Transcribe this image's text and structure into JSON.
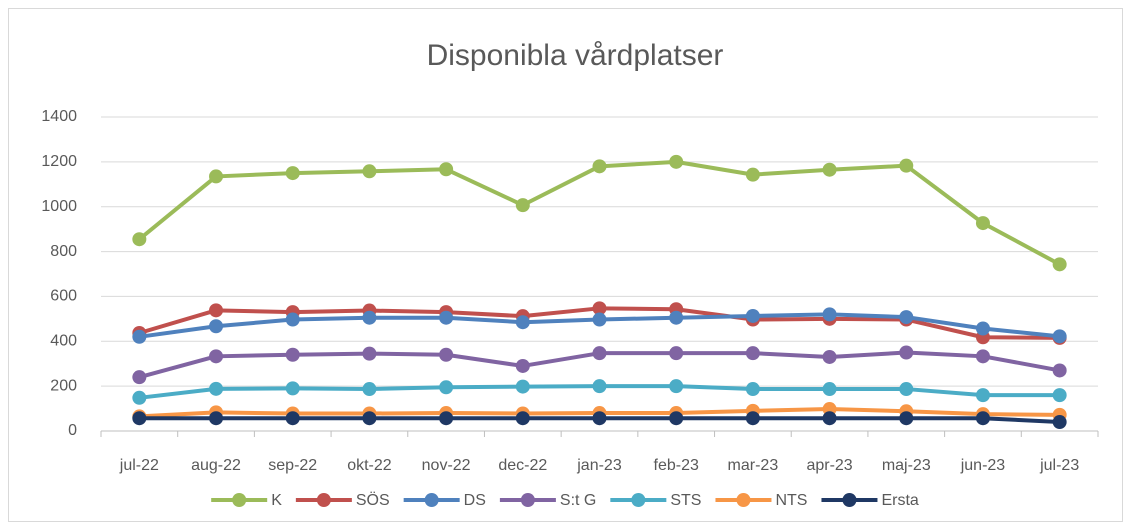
{
  "chart_data": {
    "type": "line",
    "title": "Disponibla vårdplatser",
    "categories": [
      "jul-22",
      "aug-22",
      "sep-22",
      "okt-22",
      "nov-22",
      "dec-22",
      "jan-23",
      "feb-23",
      "mar-23",
      "apr-23",
      "maj-23",
      "jun-23",
      "jul-23"
    ],
    "series": [
      {
        "name": "K",
        "color": "#9BBB59",
        "values": [
          855,
          1135,
          1150,
          1158,
          1167,
          1007,
          1180,
          1200,
          1143,
          1165,
          1183,
          927,
          743
        ]
      },
      {
        "name": "SÖS",
        "color": "#C0504D",
        "values": [
          437,
          538,
          530,
          537,
          530,
          512,
          547,
          543,
          497,
          500,
          497,
          418,
          415
        ]
      },
      {
        "name": "DS",
        "color": "#4F81BD",
        "values": [
          420,
          467,
          497,
          505,
          505,
          485,
          497,
          505,
          513,
          520,
          508,
          457,
          422
        ]
      },
      {
        "name": "S:t G",
        "color": "#8064A2",
        "values": [
          240,
          333,
          340,
          345,
          340,
          290,
          347,
          347,
          347,
          330,
          350,
          333,
          270
        ]
      },
      {
        "name": "STS",
        "color": "#4BACC6",
        "values": [
          148,
          188,
          190,
          187,
          195,
          198,
          200,
          200,
          187,
          187,
          187,
          160,
          160
        ]
      },
      {
        "name": "NTS",
        "color": "#F79646",
        "values": [
          65,
          83,
          78,
          78,
          80,
          78,
          80,
          80,
          90,
          98,
          88,
          75,
          72
        ]
      },
      {
        "name": "Ersta",
        "color": "#1F3864",
        "values": [
          57,
          57,
          57,
          57,
          57,
          57,
          57,
          57,
          57,
          57,
          57,
          57,
          40
        ]
      }
    ],
    "ylim": [
      0,
      1400
    ],
    "yticks": [
      0,
      200,
      400,
      600,
      800,
      1000,
      1200,
      1400
    ],
    "grid": true,
    "legend": "bottom"
  }
}
